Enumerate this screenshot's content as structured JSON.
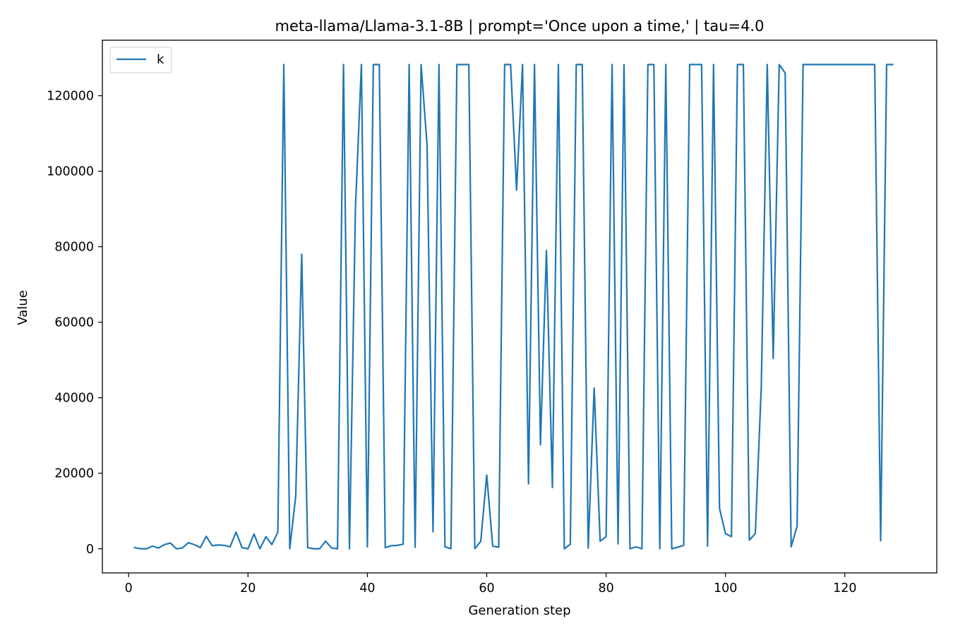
{
  "chart_data": {
    "type": "line",
    "title": "meta-llama/Llama-3.1-8B | prompt='Once upon a time,' | tau=4.0",
    "xlabel": "Generation step",
    "ylabel": "Value",
    "xlim": [
      -4.4,
      135.4
    ],
    "ylim": [
      -6400,
      134700
    ],
    "xticks": [
      0,
      20,
      40,
      60,
      80,
      100,
      120
    ],
    "yticks": [
      0,
      20000,
      40000,
      60000,
      80000,
      100000,
      120000
    ],
    "grid": false,
    "legend_position": "top-left",
    "series": [
      {
        "name": "k",
        "color": "#1f77b4",
        "x": [
          1,
          2,
          3,
          4,
          5,
          6,
          7,
          8,
          9,
          10,
          11,
          12,
          13,
          14,
          15,
          16,
          17,
          18,
          19,
          20,
          21,
          22,
          23,
          24,
          25,
          26,
          27,
          28,
          29,
          30,
          31,
          32,
          33,
          34,
          35,
          36,
          37,
          38,
          39,
          40,
          41,
          42,
          43,
          44,
          45,
          46,
          47,
          48,
          49,
          50,
          51,
          52,
          53,
          54,
          55,
          56,
          57,
          58,
          59,
          60,
          61,
          62,
          63,
          64,
          65,
          66,
          67,
          68,
          69,
          70,
          71,
          72,
          73,
          74,
          75,
          76,
          77,
          78,
          79,
          80,
          81,
          82,
          83,
          84,
          85,
          86,
          87,
          88,
          89,
          90,
          91,
          92,
          93,
          94,
          95,
          96,
          97,
          98,
          99,
          100,
          101,
          102,
          103,
          104,
          105,
          106,
          107,
          108,
          109,
          110,
          111,
          112,
          113,
          114,
          115,
          116,
          117,
          118,
          119,
          120,
          121,
          122,
          123,
          124,
          125,
          126,
          127,
          128
        ],
        "y": [
          300,
          0,
          0,
          700,
          200,
          1100,
          1500,
          0,
          200,
          1600,
          1100,
          300,
          3300,
          800,
          1000,
          900,
          500,
          4400,
          300,
          0,
          3900,
          0,
          3200,
          1100,
          4400,
          128256,
          0,
          14000,
          78000,
          300,
          0,
          0,
          2000,
          200,
          0,
          128256,
          0,
          90000,
          128256,
          500,
          128256,
          128256,
          300,
          800,
          900,
          1200,
          128256,
          400,
          128256,
          107000,
          4500,
          128256,
          500,
          0,
          128256,
          128256,
          128256,
          0,
          2000,
          19500,
          700,
          400,
          128256,
          128256,
          95000,
          128256,
          17200,
          128256,
          27500,
          79000,
          16200,
          128256,
          0,
          1200,
          128256,
          128256,
          200,
          42600,
          2000,
          3200,
          128256,
          1300,
          128256,
          0,
          500,
          0,
          128256,
          128256,
          0,
          128256,
          0,
          400,
          900,
          128256,
          128256,
          128256,
          700,
          128256,
          10700,
          4000,
          3200,
          128256,
          128256,
          2300,
          4000,
          43000,
          128256,
          50400,
          128256,
          126000,
          500,
          6000,
          128256,
          128256,
          128256,
          128256,
          128256,
          128256,
          128256,
          128256,
          128256,
          128256,
          128256,
          128256,
          128256,
          2100,
          128256,
          128256
        ]
      }
    ]
  }
}
